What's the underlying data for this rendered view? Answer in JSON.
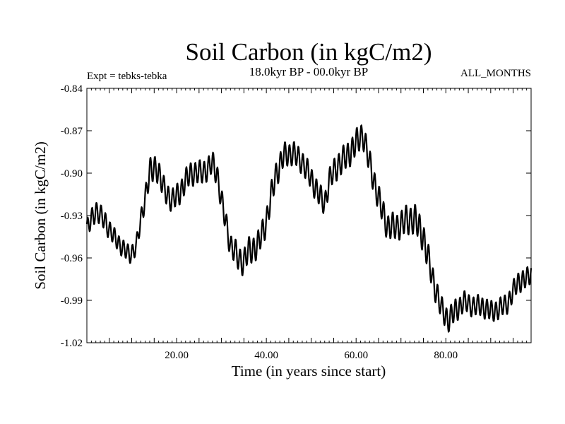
{
  "chart_data": {
    "type": "line",
    "title": "Soil Carbon (in kgC/m2)",
    "subtitle": "18.0kyr BP - 00.0kyr BP",
    "left_note": "Expt = tebks-tebka",
    "right_note": "ALL_MONTHS",
    "xlabel": "Time (in years since start)",
    "ylabel": "Soil Carbon (in kgC/m2)",
    "xlim": [
      0,
      99
    ],
    "ylim": [
      -1.02,
      -0.84
    ],
    "x_ticks": [
      {
        "value": 20,
        "label": "20.00"
      },
      {
        "value": 40,
        "label": "40.00"
      },
      {
        "value": 60,
        "label": "60.00"
      },
      {
        "value": 80,
        "label": "80.00"
      }
    ],
    "y_ticks": [
      {
        "value": -0.84,
        "label": "-0.84"
      },
      {
        "value": -0.87,
        "label": "-0.87"
      },
      {
        "value": -0.9,
        "label": "-0.90"
      },
      {
        "value": -0.93,
        "label": "-0.93"
      },
      {
        "value": -0.96,
        "label": "-0.96"
      },
      {
        "value": -0.99,
        "label": "-0.99"
      },
      {
        "value": -1.02,
        "label": "-1.02"
      }
    ],
    "oscillation_period_years": 1,
    "series": [
      {
        "name": "Soil Carbon",
        "color": "#000000",
        "x": [
          0,
          2,
          4,
          6,
          8,
          9.5,
          11,
          12.5,
          14,
          15.5,
          17,
          19,
          21,
          23,
          25,
          27,
          28,
          29,
          30,
          31,
          32,
          34,
          35,
          36,
          38,
          40,
          42,
          44,
          46,
          48,
          50,
          52,
          53,
          54,
          56,
          58,
          60,
          61.5,
          63,
          65,
          67,
          69,
          71,
          73,
          75,
          77,
          79,
          80.5,
          82,
          84,
          86,
          88,
          90,
          92,
          94,
          96,
          98,
          99
        ],
        "y": [
          -0.94,
          -0.926,
          -0.934,
          -0.945,
          -0.953,
          -0.958,
          -0.952,
          -0.925,
          -0.9,
          -0.895,
          -0.91,
          -0.92,
          -0.912,
          -0.9,
          -0.9,
          -0.897,
          -0.893,
          -0.9,
          -0.92,
          -0.935,
          -0.951,
          -0.961,
          -0.963,
          -0.955,
          -0.952,
          -0.934,
          -0.902,
          -0.887,
          -0.886,
          -0.892,
          -0.904,
          -0.917,
          -0.922,
          -0.905,
          -0.894,
          -0.888,
          -0.879,
          -0.872,
          -0.893,
          -0.918,
          -0.938,
          -0.938,
          -0.934,
          -0.932,
          -0.945,
          -0.974,
          -0.996,
          -1.004,
          -0.998,
          -0.991,
          -0.994,
          -0.994,
          -0.998,
          -0.996,
          -0.991,
          -0.977,
          -0.975,
          -0.97
        ],
        "amplitude": [
          0.007,
          0.007,
          0.007,
          0.006,
          0.006,
          0.006,
          0.006,
          0.007,
          0.009,
          0.009,
          0.008,
          0.008,
          0.008,
          0.008,
          0.008,
          0.008,
          0.008,
          0.008,
          0.008,
          0.008,
          0.008,
          0.009,
          0.009,
          0.009,
          0.009,
          0.009,
          0.009,
          0.008,
          0.008,
          0.008,
          0.008,
          0.008,
          0.008,
          0.008,
          0.009,
          0.009,
          0.009,
          0.009,
          0.009,
          0.009,
          0.009,
          0.009,
          0.01,
          0.01,
          0.01,
          0.009,
          0.008,
          0.008,
          0.008,
          0.007,
          0.007,
          0.007,
          0.007,
          0.007,
          0.007,
          0.007,
          0.007,
          0.007
        ]
      }
    ]
  }
}
